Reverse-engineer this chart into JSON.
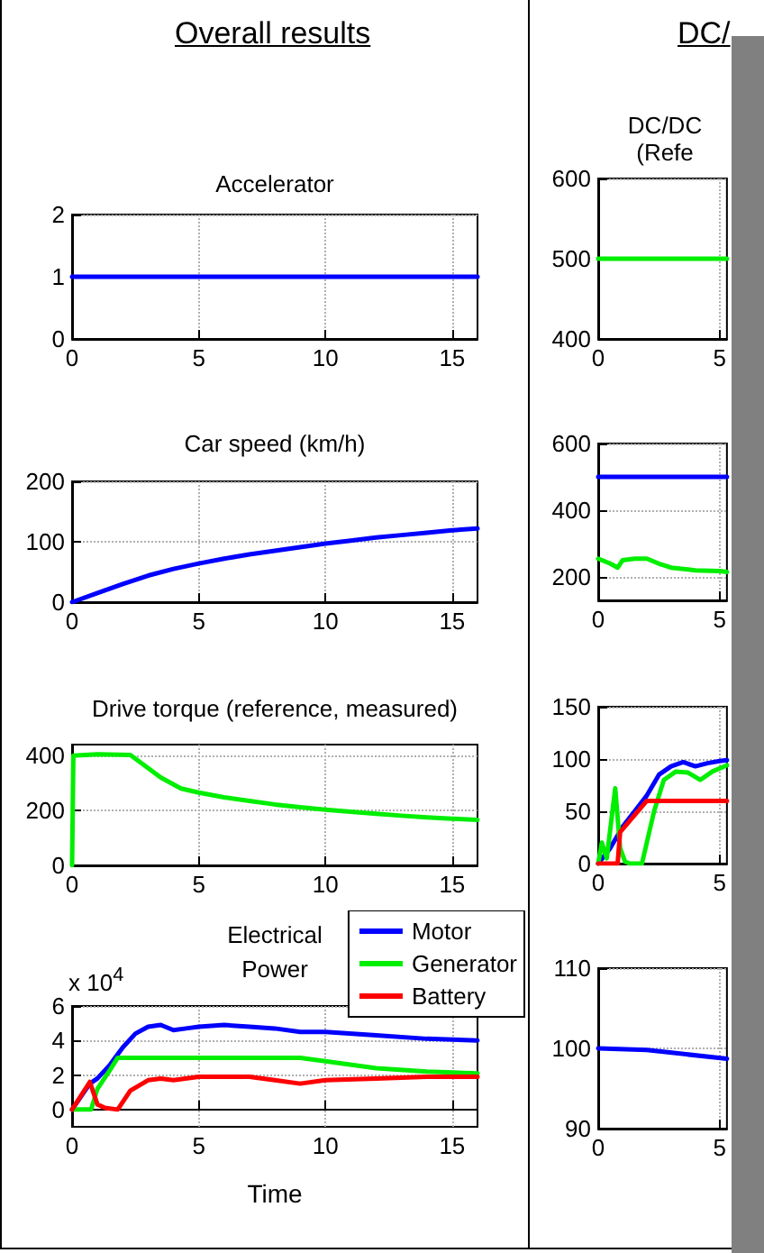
{
  "chart_data": [
    {
      "type": "line",
      "title": "Accelerator",
      "annotations": [
        "Overall results"
      ],
      "xlim": [
        0,
        16
      ],
      "ylim": [
        0,
        2
      ],
      "xticks": [
        0,
        5,
        10,
        15
      ],
      "yticks": [
        0,
        1,
        2
      ],
      "grid": true,
      "series": [
        {
          "color": "#0000ff",
          "x": [
            0,
            16
          ],
          "values": [
            1,
            1
          ]
        }
      ]
    },
    {
      "type": "line",
      "title": "Car speed (km/h)",
      "xlim": [
        0,
        16
      ],
      "ylim": [
        0,
        200
      ],
      "xticks": [
        0,
        5,
        10,
        15
      ],
      "yticks": [
        0,
        100,
        200
      ],
      "grid": true,
      "series": [
        {
          "color": "#0000ff",
          "x": [
            0,
            1,
            2,
            3,
            4,
            5,
            6,
            7,
            8,
            9,
            10,
            11,
            12,
            13,
            14,
            15,
            16
          ],
          "values": [
            0,
            15,
            30,
            44,
            55,
            64,
            72,
            79,
            85,
            91,
            97,
            102,
            107,
            111,
            115,
            119,
            122
          ]
        }
      ]
    },
    {
      "type": "line",
      "title": "Drive torque (reference, measured)",
      "xlim": [
        0,
        16
      ],
      "ylim": [
        0,
        440
      ],
      "xticks": [
        0,
        5,
        10,
        15
      ],
      "yticks": [
        0,
        200,
        400
      ],
      "grid": true,
      "series": [
        {
          "color": "#00ee00",
          "x": [
            0,
            0.05,
            1,
            2.3,
            3.5,
            4.3,
            5,
            6,
            7,
            8,
            9,
            10,
            11,
            12,
            13,
            14,
            15,
            16
          ],
          "values": [
            0,
            400,
            405,
            402,
            320,
            280,
            265,
            248,
            235,
            222,
            212,
            203,
            195,
            188,
            181,
            175,
            170,
            166
          ]
        }
      ]
    },
    {
      "type": "line",
      "title": "Electrical\nPower",
      "xlabel": "Time",
      "annotations": [
        "x 10$^{4}$"
      ],
      "xlim": [
        0,
        16
      ],
      "ylim": [
        -1,
        6
      ],
      "xticks": [
        0,
        5,
        10,
        15
      ],
      "yticks": [
        0,
        2,
        4,
        6
      ],
      "grid": true,
      "legend": "top right",
      "series": [
        {
          "name": "Motor",
          "color": "#0000ff",
          "x": [
            0,
            0.7,
            1,
            1.5,
            2,
            2.5,
            3,
            3.5,
            4,
            4.5,
            5,
            6,
            7,
            8,
            9,
            10,
            12,
            14,
            16
          ],
          "values": [
            0,
            1.5,
            1.8,
            2.6,
            3.6,
            4.4,
            4.8,
            4.9,
            4.6,
            4.7,
            4.8,
            4.9,
            4.8,
            4.7,
            4.5,
            4.5,
            4.3,
            4.1,
            4
          ]
        },
        {
          "name": "Generator",
          "color": "#00ee00",
          "x": [
            0,
            0.75,
            1,
            1.5,
            1.8,
            9,
            10,
            12,
            14,
            16
          ],
          "values": [
            0,
            0,
            1.2,
            2.3,
            3,
            3,
            2.8,
            2.4,
            2.2,
            2.1
          ]
        },
        {
          "name": "Battery",
          "color": "#ff0000",
          "x": [
            0,
            0.7,
            1,
            1.3,
            1.8,
            2.3,
            3,
            3.5,
            4,
            5,
            6,
            7,
            8,
            9,
            10,
            12,
            14,
            16
          ],
          "values": [
            0,
            1.6,
            0.3,
            0.1,
            0,
            1.1,
            1.7,
            1.8,
            1.7,
            1.9,
            1.9,
            1.9,
            1.7,
            1.5,
            1.7,
            1.8,
            1.9,
            1.9
          ]
        }
      ]
    },
    {
      "type": "line",
      "title": "DC/DC\n(Refe",
      "annotations": [
        "DC/"
      ],
      "xlim": [
        0,
        5.3
      ],
      "ylim": [
        400,
        600
      ],
      "xticks": [
        0,
        5
      ],
      "yticks": [
        400,
        500,
        600
      ],
      "grid": true,
      "series": [
        {
          "color": "#00ee00",
          "x": [
            0,
            5.3
          ],
          "values": [
            500,
            500
          ]
        }
      ]
    },
    {
      "type": "line",
      "xlim": [
        0,
        5.3
      ],
      "ylim": [
        130,
        600
      ],
      "xticks": [
        0,
        5
      ],
      "yticks": [
        200,
        400,
        600
      ],
      "grid": true,
      "series": [
        {
          "color": "#0000ff",
          "x": [
            0,
            5.3
          ],
          "values": [
            500,
            500
          ]
        },
        {
          "color": "#00ee00",
          "x": [
            0,
            0.5,
            0.8,
            1,
            1.5,
            2,
            2.5,
            3,
            4,
            5,
            5.3
          ],
          "values": [
            255,
            240,
            228,
            250,
            255,
            255,
            240,
            228,
            220,
            218,
            215
          ]
        }
      ]
    },
    {
      "type": "line",
      "xlim": [
        0,
        5.3
      ],
      "ylim": [
        0,
        150
      ],
      "xticks": [
        0,
        5
      ],
      "yticks": [
        0,
        50,
        100,
        150
      ],
      "grid": true,
      "series": [
        {
          "color": "#0000ff",
          "x": [
            0,
            0.5,
            1,
            1.5,
            2,
            2.5,
            3,
            3.5,
            4,
            4.5,
            5,
            5.3
          ],
          "values": [
            0,
            15,
            35,
            50,
            65,
            85,
            93,
            97,
            93,
            96,
            98,
            99
          ]
        },
        {
          "color": "#00ee00",
          "x": [
            0,
            0.15,
            0.35,
            0.7,
            0.9,
            1.1,
            1.3,
            1.8,
            2.3,
            2.7,
            3.2,
            3.7,
            4.2,
            4.7,
            5.3
          ],
          "values": [
            0,
            20,
            5,
            72,
            15,
            2,
            0,
            0,
            50,
            80,
            88,
            87,
            80,
            88,
            94
          ]
        },
        {
          "color": "#ff0000",
          "x": [
            0,
            0.8,
            0.9,
            2,
            5.3
          ],
          "values": [
            0,
            0,
            30,
            60,
            60
          ]
        }
      ]
    },
    {
      "type": "line",
      "xlim": [
        0,
        5.3
      ],
      "ylim": [
        90,
        110
      ],
      "xticks": [
        0,
        5
      ],
      "yticks": [
        90,
        100,
        110
      ],
      "grid": true,
      "series": [
        {
          "color": "#0000ff",
          "x": [
            0,
            2,
            5.3
          ],
          "values": [
            100,
            99.8,
            98.7
          ]
        }
      ]
    }
  ]
}
